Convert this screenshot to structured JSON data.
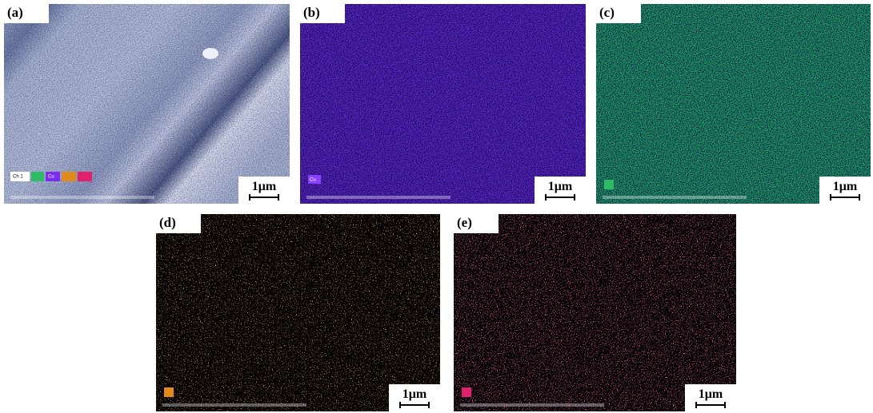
{
  "panels": [
    {
      "label": "(a)",
      "scale": "1μm",
      "tags": [
        "Ch 1",
        "Cu"
      ]
    },
    {
      "label": "(b)",
      "scale": "1μm",
      "tags": [
        "Cu"
      ]
    },
    {
      "label": "(c)",
      "scale": "1μm"
    },
    {
      "label": "(d)",
      "scale": "1μm"
    },
    {
      "label": "(e)",
      "scale": "1μm"
    }
  ]
}
